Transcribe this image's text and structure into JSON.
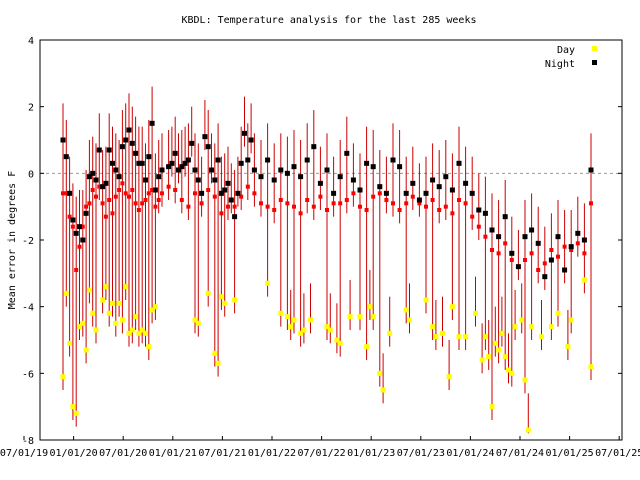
{
  "chart_data": {
    "type": "scatter",
    "title": "KBDL: Temperature analysis for the last 285 weeks",
    "ylabel": "Mean error in degrees F",
    "xlabel": "",
    "ylim": [
      -8,
      4
    ],
    "yticks": [
      "4",
      "2",
      "0",
      "-2",
      "-4",
      "-6",
      "-8"
    ],
    "xtick_labels": [
      "07/01/19",
      "01/01/20",
      "07/01/20",
      "01/01/21",
      "07/01/21",
      "01/01/22",
      "07/01/22",
      "01/01/23",
      "07/01/23",
      "01/01/24",
      "07/01/24",
      "01/01/25",
      "07/01/25"
    ],
    "grid": false,
    "zero_line": true,
    "legend_position": "top-right",
    "legend": [
      {
        "name": "Day",
        "color": "#ffff00"
      },
      {
        "name": "Night",
        "color": "#000000"
      }
    ],
    "colors": {
      "bars": "#cc0000",
      "mean": "#ff0000",
      "day": "#ffff00",
      "night": "#000000"
    },
    "series": [
      {
        "name": "Day",
        "points": [
          [
            0,
            -6.1
          ],
          [
            1,
            -3.6
          ],
          [
            2,
            -5.1
          ],
          [
            3,
            -7.0
          ],
          [
            4,
            -7.2
          ],
          [
            5,
            -4.6
          ],
          [
            6,
            -4.5
          ],
          [
            7,
            -5.3
          ],
          [
            8,
            -3.5
          ],
          [
            9,
            -4.2
          ],
          [
            10,
            -4.7
          ],
          [
            12,
            -3.8
          ],
          [
            13,
            -3.4
          ],
          [
            14,
            -4.2
          ],
          [
            15,
            -3.9
          ],
          [
            16,
            -4.5
          ],
          [
            17,
            -3.9
          ],
          [
            18,
            -4.4
          ],
          [
            19,
            -3.4
          ],
          [
            20,
            -4.8
          ],
          [
            21,
            -4.7
          ],
          [
            22,
            -4.3
          ],
          [
            23,
            -4.8
          ],
          [
            24,
            -4.7
          ],
          [
            25,
            -4.8
          ],
          [
            26,
            -5.2
          ],
          [
            27,
            -4.1
          ],
          [
            28,
            -4.0
          ],
          [
            40,
            -4.4
          ],
          [
            41,
            -4.5
          ],
          [
            44,
            -3.6
          ],
          [
            46,
            -5.4
          ],
          [
            47,
            -5.7
          ],
          [
            48,
            -3.7
          ],
          [
            49,
            -3.9
          ],
          [
            52,
            -3.8
          ],
          [
            62,
            -3.3
          ],
          [
            66,
            -4.2
          ],
          [
            68,
            -4.3
          ],
          [
            69,
            -4.6
          ],
          [
            70,
            -4.4
          ],
          [
            72,
            -4.8
          ],
          [
            73,
            -4.7
          ],
          [
            75,
            -4.4
          ],
          [
            80,
            -4.6
          ],
          [
            81,
            -4.7
          ],
          [
            83,
            -5.0
          ],
          [
            84,
            -5.1
          ],
          [
            87,
            -4.3
          ],
          [
            90,
            -4.3
          ],
          [
            92,
            -5.2
          ],
          [
            93,
            -4.0
          ],
          [
            94,
            -4.3
          ],
          [
            96,
            -6.0
          ],
          [
            97,
            -6.5
          ],
          [
            99,
            -4.8
          ],
          [
            104,
            -4.1
          ],
          [
            105,
            -4.4
          ],
          [
            110,
            -3.8
          ],
          [
            112,
            -4.6
          ],
          [
            113,
            -4.9
          ],
          [
            115,
            -4.8
          ],
          [
            117,
            -6.1
          ],
          [
            118,
            -4.0
          ],
          [
            120,
            -4.9
          ],
          [
            122,
            -4.9
          ],
          [
            125,
            -4.2
          ],
          [
            127,
            -5.6
          ],
          [
            128,
            -4.9
          ],
          [
            129,
            -5.5
          ],
          [
            130,
            -7.0
          ],
          [
            131,
            -5.1
          ],
          [
            132,
            -5.3
          ],
          [
            133,
            -4.8
          ],
          [
            134,
            -5.5
          ],
          [
            135,
            -5.9
          ],
          [
            136,
            -6.0
          ],
          [
            137,
            -4.6
          ],
          [
            139,
            -4.4
          ],
          [
            140,
            -6.2
          ],
          [
            141,
            -7.7
          ],
          [
            142,
            -4.6
          ],
          [
            145,
            -4.9
          ],
          [
            148,
            -4.6
          ],
          [
            150,
            -4.2
          ],
          [
            153,
            -5.2
          ],
          [
            154,
            -4.4
          ],
          [
            158,
            -3.2
          ],
          [
            160,
            -5.8
          ]
        ]
      },
      {
        "name": "Night",
        "points": [
          [
            0,
            1.0
          ],
          [
            1,
            0.5
          ],
          [
            2,
            -0.6
          ],
          [
            3,
            -1.4
          ],
          [
            4,
            -1.8
          ],
          [
            5,
            -1.6
          ],
          [
            6,
            -2.0
          ],
          [
            7,
            -1.2
          ],
          [
            8,
            -0.1
          ],
          [
            9,
            0.0
          ],
          [
            10,
            -0.2
          ],
          [
            11,
            0.7
          ],
          [
            12,
            -0.4
          ],
          [
            13,
            -0.3
          ],
          [
            14,
            0.7
          ],
          [
            15,
            0.3
          ],
          [
            16,
            0.1
          ],
          [
            17,
            -0.1
          ],
          [
            18,
            0.8
          ],
          [
            19,
            1.0
          ],
          [
            20,
            1.3
          ],
          [
            21,
            0.9
          ],
          [
            22,
            0.6
          ],
          [
            23,
            0.3
          ],
          [
            24,
            0.3
          ],
          [
            25,
            -0.2
          ],
          [
            26,
            0.5
          ],
          [
            27,
            1.5
          ],
          [
            28,
            -0.5
          ],
          [
            29,
            -0.1
          ],
          [
            30,
            0.1
          ],
          [
            32,
            0.2
          ],
          [
            33,
            0.3
          ],
          [
            34,
            0.6
          ],
          [
            35,
            0.1
          ],
          [
            36,
            0.2
          ],
          [
            37,
            0.3
          ],
          [
            38,
            0.4
          ],
          [
            39,
            0.9
          ],
          [
            40,
            0.1
          ],
          [
            41,
            -0.2
          ],
          [
            42,
            -0.6
          ],
          [
            43,
            1.1
          ],
          [
            44,
            0.8
          ],
          [
            45,
            0.1
          ],
          [
            46,
            -0.2
          ],
          [
            47,
            0.4
          ],
          [
            48,
            -0.6
          ],
          [
            49,
            -0.5
          ],
          [
            50,
            -0.3
          ],
          [
            51,
            -0.8
          ],
          [
            52,
            -1.3
          ],
          [
            53,
            -0.6
          ],
          [
            54,
            0.3
          ],
          [
            55,
            1.2
          ],
          [
            56,
            0.4
          ],
          [
            57,
            1.0
          ],
          [
            58,
            0.1
          ],
          [
            60,
            -0.1
          ],
          [
            62,
            0.4
          ],
          [
            64,
            -0.2
          ],
          [
            66,
            0.1
          ],
          [
            68,
            0.0
          ],
          [
            70,
            0.2
          ],
          [
            72,
            -0.1
          ],
          [
            74,
            0.4
          ],
          [
            76,
            0.8
          ],
          [
            78,
            -0.3
          ],
          [
            80,
            0.1
          ],
          [
            82,
            -0.6
          ],
          [
            84,
            -0.1
          ],
          [
            86,
            0.6
          ],
          [
            88,
            -0.2
          ],
          [
            90,
            -0.5
          ],
          [
            92,
            0.3
          ],
          [
            94,
            0.2
          ],
          [
            96,
            -0.4
          ],
          [
            98,
            -0.6
          ],
          [
            100,
            0.4
          ],
          [
            102,
            0.2
          ],
          [
            104,
            -0.6
          ],
          [
            106,
            -0.3
          ],
          [
            108,
            -0.8
          ],
          [
            110,
            -0.6
          ],
          [
            112,
            -0.2
          ],
          [
            114,
            -0.4
          ],
          [
            116,
            -0.1
          ],
          [
            118,
            -0.5
          ],
          [
            120,
            0.3
          ],
          [
            122,
            -0.3
          ],
          [
            124,
            -0.6
          ],
          [
            126,
            -1.1
          ],
          [
            128,
            -1.2
          ],
          [
            130,
            -1.7
          ],
          [
            132,
            -1.9
          ],
          [
            134,
            -1.3
          ],
          [
            136,
            -2.4
          ],
          [
            138,
            -2.8
          ],
          [
            140,
            -1.9
          ],
          [
            142,
            -1.7
          ],
          [
            144,
            -2.1
          ],
          [
            146,
            -3.1
          ],
          [
            148,
            -2.6
          ],
          [
            150,
            -1.9
          ],
          [
            152,
            -2.9
          ],
          [
            154,
            -2.2
          ],
          [
            156,
            -1.8
          ],
          [
            158,
            -2.0
          ],
          [
            160,
            0.1
          ]
        ]
      },
      {
        "name": "Mean error",
        "points": [
          [
            0,
            -0.6
          ],
          [
            1,
            -0.6
          ],
          [
            2,
            -1.3
          ],
          [
            3,
            -1.6
          ],
          [
            4,
            -2.9
          ],
          [
            5,
            -2.2
          ],
          [
            6,
            -1.6
          ],
          [
            7,
            -1.0
          ],
          [
            8,
            -0.9
          ],
          [
            9,
            -0.5
          ],
          [
            10,
            -0.7
          ],
          [
            11,
            -0.4
          ],
          [
            12,
            -0.9
          ],
          [
            13,
            -1.3
          ],
          [
            14,
            -0.8
          ],
          [
            15,
            -1.2
          ],
          [
            16,
            -0.7
          ],
          [
            17,
            -0.5
          ],
          [
            18,
            -0.3
          ],
          [
            19,
            -0.6
          ],
          [
            20,
            -0.7
          ],
          [
            21,
            -0.5
          ],
          [
            22,
            -0.9
          ],
          [
            23,
            -1.1
          ],
          [
            24,
            -0.9
          ],
          [
            25,
            -0.8
          ],
          [
            26,
            -0.6
          ],
          [
            27,
            -0.5
          ],
          [
            28,
            -1.0
          ],
          [
            29,
            -0.8
          ],
          [
            30,
            -0.6
          ],
          [
            32,
            -0.4
          ],
          [
            34,
            -0.5
          ],
          [
            36,
            -0.8
          ],
          [
            38,
            -1.0
          ],
          [
            40,
            -0.6
          ],
          [
            42,
            -0.9
          ],
          [
            44,
            -0.5
          ],
          [
            46,
            -0.7
          ],
          [
            48,
            -1.2
          ],
          [
            50,
            -1.0
          ],
          [
            52,
            -1.0
          ],
          [
            54,
            -0.7
          ],
          [
            56,
            -0.4
          ],
          [
            58,
            -0.6
          ],
          [
            60,
            -0.9
          ],
          [
            62,
            -1.0
          ],
          [
            64,
            -1.1
          ],
          [
            66,
            -0.8
          ],
          [
            68,
            -0.9
          ],
          [
            70,
            -1.0
          ],
          [
            72,
            -1.2
          ],
          [
            74,
            -0.8
          ],
          [
            76,
            -1.0
          ],
          [
            78,
            -0.7
          ],
          [
            80,
            -1.1
          ],
          [
            82,
            -0.9
          ],
          [
            84,
            -0.9
          ],
          [
            86,
            -0.8
          ],
          [
            88,
            -0.6
          ],
          [
            90,
            -1.0
          ],
          [
            92,
            -1.1
          ],
          [
            94,
            -0.7
          ],
          [
            96,
            -0.6
          ],
          [
            98,
            -0.8
          ],
          [
            100,
            -0.9
          ],
          [
            102,
            -1.1
          ],
          [
            104,
            -0.9
          ],
          [
            106,
            -0.7
          ],
          [
            108,
            -0.9
          ],
          [
            110,
            -1.0
          ],
          [
            112,
            -0.8
          ],
          [
            114,
            -1.1
          ],
          [
            116,
            -1.0
          ],
          [
            118,
            -1.2
          ],
          [
            120,
            -0.8
          ],
          [
            122,
            -0.9
          ],
          [
            124,
            -1.3
          ],
          [
            126,
            -1.6
          ],
          [
            128,
            -1.9
          ],
          [
            130,
            -2.3
          ],
          [
            132,
            -2.4
          ],
          [
            134,
            -2.1
          ],
          [
            136,
            -2.6
          ],
          [
            138,
            -2.8
          ],
          [
            140,
            -2.6
          ],
          [
            142,
            -2.4
          ],
          [
            144,
            -2.9
          ],
          [
            146,
            -2.7
          ],
          [
            148,
            -2.3
          ],
          [
            150,
            -2.5
          ],
          [
            152,
            -2.2
          ],
          [
            154,
            -2.3
          ],
          [
            156,
            -2.1
          ],
          [
            158,
            -2.4
          ],
          [
            160,
            -0.9
          ]
        ]
      }
    ]
  }
}
